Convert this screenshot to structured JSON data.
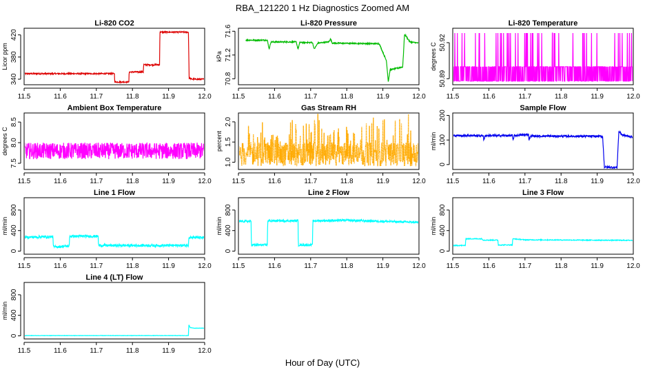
{
  "title": "RBA_121220  1 Hz Diagnostics Zoomed AM",
  "xlabel": "Hour of Day (UTC)",
  "chart_data": [
    {
      "type": "line",
      "title": "Li-820 CO2",
      "ylabel": "Licor ppm",
      "color": "#dd0000",
      "xlim": [
        11.5,
        12.0
      ],
      "ylim": [
        330,
        432
      ],
      "xticks": [
        "11.5",
        "11.6",
        "11.7",
        "11.8",
        "11.9",
        "12.0"
      ],
      "yticks": [
        "340",
        "380",
        "420"
      ],
      "x": [
        11.5,
        11.75,
        11.751,
        11.79,
        11.791,
        11.83,
        11.831,
        11.875,
        11.876,
        11.955,
        11.957,
        11.965,
        12.0
      ],
      "y": [
        350,
        350,
        335,
        335,
        353,
        353,
        366,
        366,
        425,
        425,
        342,
        340,
        340
      ],
      "noise": 1.2
    },
    {
      "type": "line",
      "title": "Li-820 Pressure",
      "ylabel": "kPa",
      "color": "#00bb00",
      "xlim": [
        11.5,
        12.0
      ],
      "ylim": [
        70.7,
        71.65
      ],
      "xticks": [
        "11.5",
        "11.6",
        "11.7",
        "11.8",
        "11.9",
        "12.0"
      ],
      "yticks": [
        "70.8",
        "71.2",
        "71.6"
      ],
      "x": [
        11.52,
        11.58,
        11.585,
        11.59,
        11.66,
        11.665,
        11.67,
        11.705,
        11.71,
        11.72,
        11.75,
        11.755,
        11.76,
        11.89,
        11.91,
        11.915,
        11.92,
        11.955,
        11.96,
        11.975,
        12.0
      ],
      "y": [
        71.45,
        71.45,
        71.3,
        71.42,
        71.42,
        71.3,
        71.41,
        71.41,
        71.3,
        71.4,
        71.42,
        71.47,
        71.4,
        71.39,
        71.1,
        70.75,
        70.95,
        71.0,
        71.55,
        71.42,
        71.4
      ],
      "noise": 0.01
    },
    {
      "type": "line",
      "title": "Li-820 Temperature",
      "ylabel": "degrees C",
      "color": "#ff00ff",
      "xlim": [
        11.5,
        12.0
      ],
      "ylim": [
        50.885,
        50.932
      ],
      "xticks": [
        "11.5",
        "11.6",
        "11.7",
        "11.8",
        "11.9",
        "12.0"
      ],
      "yticks": [
        "50.89",
        "50.92"
      ],
      "x": [
        11.5,
        12.0
      ],
      "y": [
        50.9,
        50.9
      ],
      "noise": 0
    },
    {
      "type": "line",
      "title": "Ambient Box Temperature",
      "ylabel": "degrees C",
      "color": "#ff00ff",
      "xlim": [
        11.5,
        12.0
      ],
      "ylim": [
        7.35,
        8.72
      ],
      "xticks": [
        "11.5",
        "11.6",
        "11.7",
        "11.8",
        "11.9",
        "12.0"
      ],
      "yticks": [
        "7.5",
        "8.0",
        "8.5"
      ],
      "x": [
        11.5,
        12.0
      ],
      "y": [
        7.8,
        7.8
      ],
      "noise": 0.2
    },
    {
      "type": "scatter",
      "title": "Gas Stream RH",
      "ylabel": "percent",
      "color": "#ffaa00",
      "xlim": [
        11.5,
        12.0
      ],
      "ylim": [
        0.82,
        2.22
      ],
      "xticks": [
        "11.5",
        "11.6",
        "11.7",
        "11.8",
        "11.9",
        "12.0"
      ],
      "yticks": [
        "1.0",
        "1.5",
        "2.0"
      ],
      "x": [
        11.5,
        12.0
      ],
      "y": [
        1.2,
        1.2
      ],
      "noise": 0.3
    },
    {
      "type": "line",
      "title": "Sample Flow",
      "ylabel": "ml/min",
      "color": "#0000ee",
      "xlim": [
        11.5,
        12.0
      ],
      "ylim": [
        -20,
        210
      ],
      "xticks": [
        "11.5",
        "11.6",
        "11.7",
        "11.8",
        "11.9",
        "12.0"
      ],
      "yticks": [
        "0",
        "100",
        "200"
      ],
      "x": [
        11.5,
        11.585,
        11.586,
        11.59,
        11.665,
        11.667,
        11.67,
        11.71,
        11.711,
        11.715,
        11.915,
        11.92,
        11.955,
        11.96,
        11.97,
        12.0
      ],
      "y": [
        118,
        118,
        96,
        118,
        118,
        98,
        118,
        122,
        100,
        116,
        115,
        -10,
        -12,
        135,
        120,
        112
      ],
      "noise": 4
    },
    {
      "type": "line",
      "title": "Line 1 Flow",
      "ylabel": "ml/min",
      "color": "#00ffff",
      "xlim": [
        11.5,
        12.0
      ],
      "ylim": [
        -60,
        1040
      ],
      "xticks": [
        "11.5",
        "11.6",
        "11.7",
        "11.8",
        "11.9",
        "12.0"
      ],
      "yticks": [
        "0",
        "400",
        "800"
      ],
      "x": [
        11.5,
        11.58,
        11.581,
        11.625,
        11.626,
        11.705,
        11.706,
        11.955,
        11.956,
        12.0
      ],
      "y": [
        270,
        280,
        80,
        100,
        290,
        290,
        110,
        110,
        270,
        260
      ],
      "noise": 25
    },
    {
      "type": "line",
      "title": "Line 2 Flow",
      "ylabel": "ml/min",
      "color": "#00ffff",
      "xlim": [
        11.5,
        12.0
      ],
      "ylim": [
        -60,
        1040
      ],
      "xticks": [
        "11.5",
        "11.6",
        "11.7",
        "11.8",
        "11.9",
        "12.0"
      ],
      "yticks": [
        "0",
        "400",
        "800"
      ],
      "x": [
        11.5,
        11.535,
        11.536,
        11.58,
        11.581,
        11.665,
        11.666,
        11.705,
        11.706,
        11.8,
        12.0
      ],
      "y": [
        580,
        580,
        120,
        120,
        590,
        590,
        120,
        120,
        590,
        600,
        560
      ],
      "noise": 20
    },
    {
      "type": "line",
      "title": "Line 3 Flow",
      "ylabel": "ml/min",
      "color": "#00ffff",
      "xlim": [
        11.5,
        12.0
      ],
      "ylim": [
        -60,
        1040
      ],
      "xticks": [
        "11.5",
        "11.6",
        "11.7",
        "11.8",
        "11.9",
        "12.0"
      ],
      "yticks": [
        "0",
        "400",
        "800"
      ],
      "x": [
        11.5,
        11.535,
        11.536,
        11.58,
        11.585,
        11.625,
        11.626,
        11.665,
        11.666,
        11.7,
        12.0
      ],
      "y": [
        110,
        110,
        240,
        240,
        215,
        215,
        120,
        120,
        240,
        220,
        210
      ],
      "noise": 8
    },
    {
      "type": "line",
      "title": "Line 4 (LT) Flow",
      "ylabel": "ml/min",
      "color": "#00ffff",
      "xlim": [
        11.5,
        12.0
      ],
      "ylim": [
        -60,
        1040
      ],
      "xticks": [
        "11.5",
        "11.6",
        "11.7",
        "11.8",
        "11.9",
        "12.0"
      ],
      "yticks": [
        "0",
        "400",
        "800"
      ],
      "x": [
        11.5,
        11.955,
        11.956,
        11.96,
        11.97,
        12.0
      ],
      "y": [
        5,
        5,
        220,
        160,
        150,
        150
      ],
      "noise": 3
    }
  ]
}
